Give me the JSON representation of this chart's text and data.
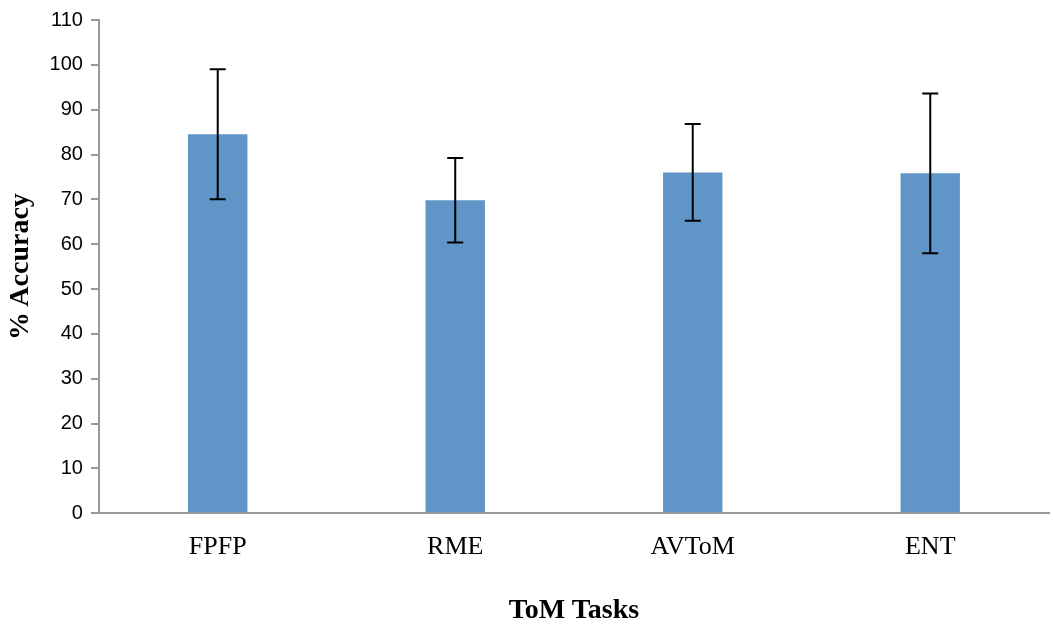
{
  "chart_data": {
    "type": "bar",
    "xlabel": "ToM Tasks",
    "ylabel": "% Accuracy",
    "categories": [
      "FPFP",
      "RME",
      "AVToM",
      "ENT"
    ],
    "values": [
      84.5,
      69.8,
      76.0,
      75.8
    ],
    "errors": [
      14.5,
      9.4,
      10.8,
      17.8
    ],
    "color": "#6195c8",
    "ylim": [
      0,
      110
    ],
    "yticks": [
      0,
      10,
      20,
      30,
      40,
      50,
      60,
      70,
      80,
      90,
      100,
      110
    ],
    "grid": false,
    "legend": false
  }
}
